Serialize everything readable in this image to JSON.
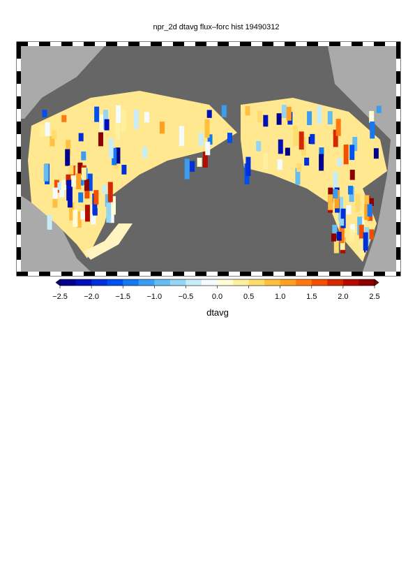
{
  "chart_data": {
    "type": "colorbar-map",
    "title": "npr_2d dtavg flux–forc hist 19490312",
    "colorbar_label": "dtavg",
    "xlim": [
      -2.5,
      2.5
    ],
    "xticks": [
      {
        "value": -2.5,
        "label": "−2.5"
      },
      {
        "value": -2.0,
        "label": "−2.0"
      },
      {
        "value": -1.5,
        "label": "−1.5"
      },
      {
        "value": -1.0,
        "label": "−1.0"
      },
      {
        "value": -0.5,
        "label": "−0.5"
      },
      {
        "value": 0.0,
        "label": "0.0"
      },
      {
        "value": 0.5,
        "label": "0.5"
      },
      {
        "value": 1.0,
        "label": "1.0"
      },
      {
        "value": 1.5,
        "label": "1.5"
      },
      {
        "value": 2.0,
        "label": "2.0"
      },
      {
        "value": 2.5,
        "label": "2.5"
      }
    ],
    "colors": [
      "#00008c",
      "#0010b4",
      "#0030d8",
      "#0050f0",
      "#1478f0",
      "#3c9cf0",
      "#64bcf0",
      "#96d4f4",
      "#c8ecf8",
      "#f4fcff",
      "#fffcd8",
      "#fff0a0",
      "#ffdc6c",
      "#ffc040",
      "#ffa020",
      "#ff7810",
      "#f05000",
      "#d42800",
      "#b40c00",
      "#8c0000"
    ]
  }
}
